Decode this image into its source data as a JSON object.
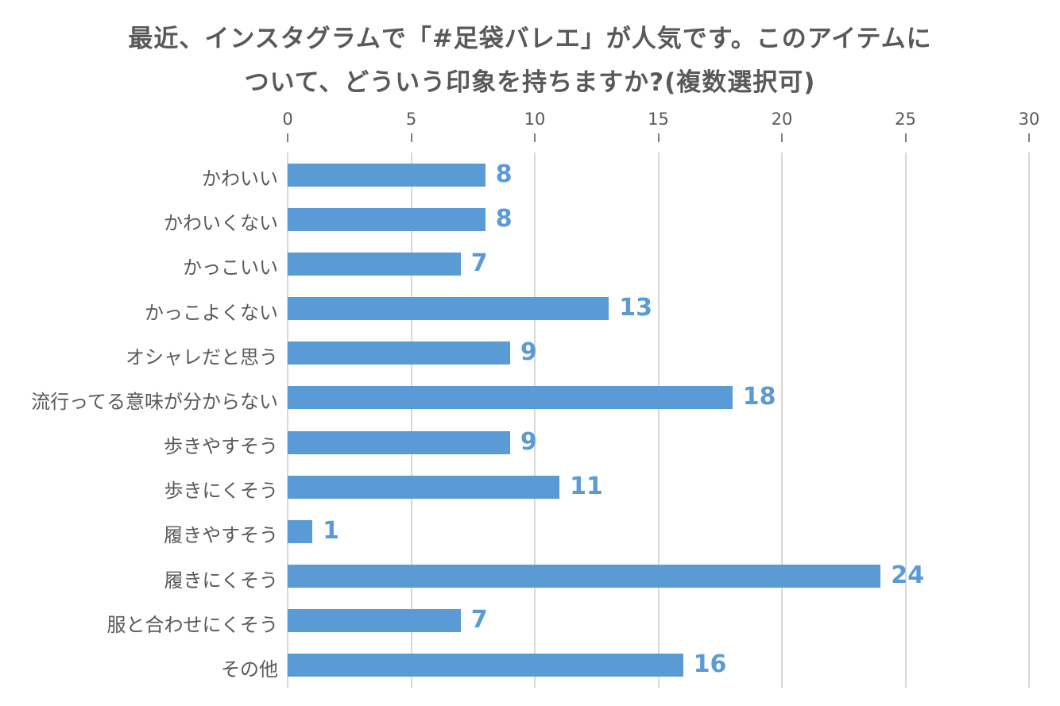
{
  "title": {
    "lines": [
      "最近、インスタグラムで「#足袋バレエ」が人気です。このアイテムに",
      "ついて、どういう印象を持ちますか?(複数選択可)"
    ]
  },
  "chart_data": {
    "type": "bar",
    "orientation": "horizontal",
    "title": "最近、インスタグラムで「#足袋バレエ」が人気です。このアイテムについて、どういう印象を持ちますか?(複数選択可)",
    "categories": [
      "かわいい",
      "かわいくない",
      "かっこいい",
      "かっこよくない",
      "オシャレだと思う",
      "流行ってる意味が分からない",
      "歩きやすそう",
      "歩きにくそう",
      "履きやすそう",
      "履きにくそう",
      "服と合わせにくそう",
      "その他"
    ],
    "values": [
      8,
      8,
      7,
      13,
      9,
      18,
      9,
      11,
      1,
      24,
      7,
      16
    ],
    "data_labels": [
      8,
      8,
      7,
      13,
      9,
      18,
      9,
      11,
      1,
      24,
      7,
      16
    ],
    "xlabel": "",
    "ylabel": "",
    "xlim": [
      0,
      30
    ],
    "xticks": [
      0,
      5,
      10,
      15,
      20,
      25,
      30
    ],
    "grid": true,
    "legend": false
  },
  "colors": {
    "bar": "#5b9bd5",
    "data_label": "#5b9bd5",
    "text": "#595959",
    "gridline": "#d9d9d9",
    "tick_mark": "#7f7f7f",
    "background": "#ffffff"
  }
}
